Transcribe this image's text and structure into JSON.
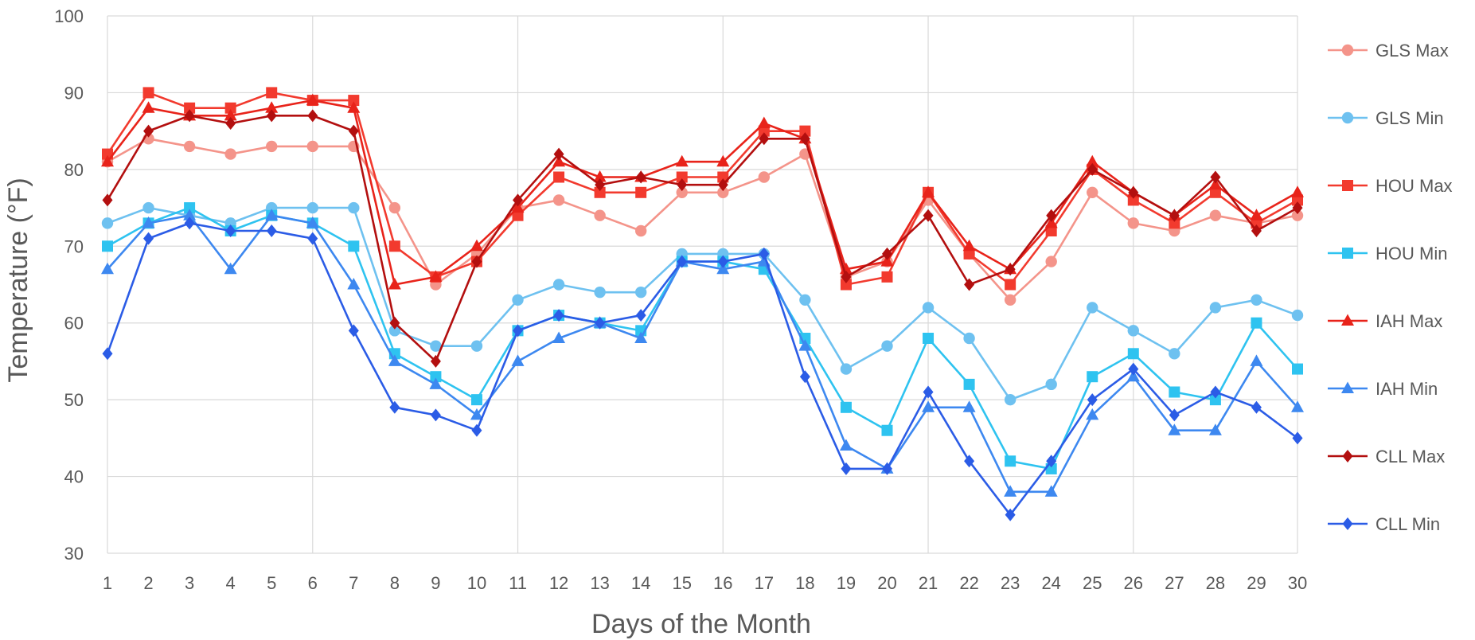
{
  "chart_data": {
    "type": "line",
    "title": "",
    "xlabel": "Days of the Month",
    "ylabel": "Temperature (°F)",
    "x": [
      1,
      2,
      3,
      4,
      5,
      6,
      7,
      8,
      9,
      10,
      11,
      12,
      13,
      14,
      15,
      16,
      17,
      18,
      19,
      20,
      21,
      22,
      23,
      24,
      25,
      26,
      27,
      28,
      29,
      30
    ],
    "ylim": [
      30,
      100
    ],
    "yticks": [
      30,
      40,
      50,
      60,
      70,
      80,
      90,
      100
    ],
    "grid": true,
    "legend_position": "right",
    "series": [
      {
        "name": "GLS Max",
        "color": "#F4948A",
        "marker": "circle",
        "values": [
          81,
          84,
          83,
          82,
          83,
          83,
          83,
          75,
          65,
          69,
          75,
          76,
          74,
          72,
          77,
          77,
          79,
          82,
          66,
          68,
          76,
          69,
          63,
          68,
          77,
          73,
          72,
          74,
          73,
          74
        ]
      },
      {
        "name": "GLS Min",
        "color": "#6EC1F0",
        "marker": "circle",
        "values": [
          73,
          75,
          74,
          73,
          75,
          75,
          75,
          59,
          57,
          57,
          63,
          65,
          64,
          64,
          69,
          69,
          69,
          63,
          54,
          57,
          62,
          58,
          50,
          52,
          62,
          59,
          56,
          62,
          63,
          61
        ]
      },
      {
        "name": "HOU Max",
        "color": "#F23A2E",
        "marker": "square",
        "values": [
          82,
          90,
          88,
          88,
          90,
          89,
          89,
          70,
          66,
          68,
          74,
          79,
          77,
          77,
          79,
          79,
          85,
          85,
          65,
          66,
          77,
          69,
          65,
          72,
          80,
          76,
          73,
          77,
          73,
          76
        ]
      },
      {
        "name": "HOU Min",
        "color": "#2EC3F0",
        "marker": "square",
        "values": [
          70,
          73,
          75,
          72,
          74,
          73,
          70,
          56,
          53,
          50,
          59,
          61,
          60,
          59,
          68,
          68,
          67,
          58,
          49,
          46,
          58,
          52,
          42,
          41,
          53,
          56,
          51,
          50,
          60,
          54
        ]
      },
      {
        "name": "IAH Max",
        "color": "#E8231A",
        "marker": "triangle",
        "values": [
          81,
          88,
          87,
          87,
          88,
          89,
          88,
          65,
          66,
          70,
          75,
          81,
          79,
          79,
          81,
          81,
          86,
          84,
          67,
          68,
          77,
          70,
          67,
          73,
          81,
          77,
          74,
          78,
          74,
          77
        ]
      },
      {
        "name": "IAH Min",
        "color": "#3D88F0",
        "marker": "triangle",
        "values": [
          67,
          73,
          74,
          67,
          74,
          73,
          65,
          55,
          52,
          48,
          55,
          58,
          60,
          58,
          68,
          67,
          68,
          57,
          44,
          41,
          49,
          49,
          38,
          38,
          48,
          53,
          46,
          46,
          55,
          49
        ]
      },
      {
        "name": "CLL Max",
        "color": "#B30F0F",
        "marker": "diamond",
        "values": [
          76,
          85,
          87,
          86,
          87,
          87,
          85,
          60,
          55,
          68,
          76,
          82,
          78,
          79,
          78,
          78,
          84,
          84,
          66,
          69,
          74,
          65,
          67,
          74,
          80,
          77,
          74,
          79,
          72,
          75
        ]
      },
      {
        "name": "CLL Min",
        "color": "#2B5CE6",
        "marker": "diamond",
        "values": [
          56,
          71,
          73,
          72,
          72,
          71,
          59,
          49,
          48,
          46,
          59,
          61,
          60,
          61,
          68,
          68,
          69,
          53,
          41,
          41,
          51,
          42,
          35,
          42,
          50,
          54,
          48,
          51,
          49,
          45
        ]
      }
    ]
  }
}
